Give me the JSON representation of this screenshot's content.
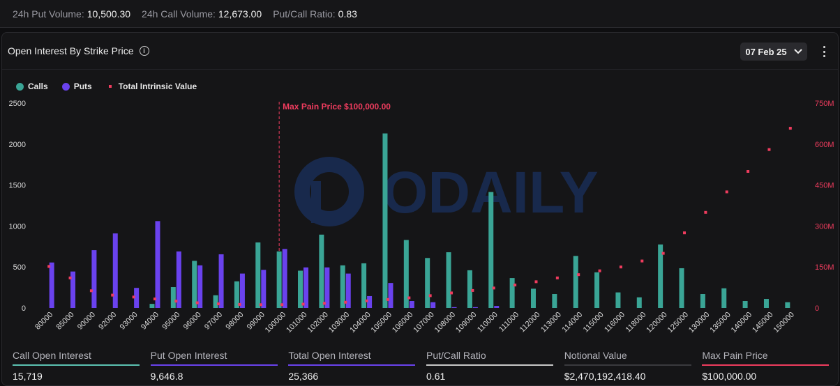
{
  "topbar": {
    "put_volume_label": "24h Put Volume:",
    "put_volume_value": "10,500.30",
    "call_volume_label": "24h Call Volume:",
    "call_volume_value": "12,673.00",
    "ratio_label": "Put/Call Ratio:",
    "ratio_value": "0.83"
  },
  "card": {
    "title": "Open Interest By Strike Price",
    "date_selector": "07 Feb 25",
    "icons": {
      "info": "info-icon",
      "chevron": "chevron-down-icon",
      "menu": "kebab-menu-icon"
    }
  },
  "colors": {
    "calls": "#3aa596",
    "puts": "#6a42ee",
    "intrinsic": "#ef3c5e",
    "max_pain": "#ef3c5e",
    "call_oi_line": "#5cc2b2",
    "put_oi_line": "#6a42ee",
    "total_oi_line": "#6a42ee",
    "ratio_line": "#c8c8c8",
    "notional_line": "#3a3a3e",
    "maxpain_line": "#ef3c5e"
  },
  "chart_data": {
    "type": "bar",
    "legend": [
      {
        "name": "Calls",
        "marker": "circle"
      },
      {
        "name": "Puts",
        "marker": "circle"
      },
      {
        "name": "Total Intrinsic Value",
        "marker": "square"
      }
    ],
    "categories": [
      "80000",
      "85000",
      "90000",
      "92000",
      "93000",
      "94000",
      "95000",
      "96000",
      "97000",
      "98000",
      "99000",
      "100000",
      "101000",
      "102000",
      "103000",
      "104000",
      "105000",
      "106000",
      "107000",
      "108000",
      "109000",
      "110000",
      "111000",
      "112000",
      "113000",
      "114000",
      "115000",
      "116000",
      "118000",
      "120000",
      "125000",
      "130000",
      "135000",
      "140000",
      "145000",
      "150000"
    ],
    "series": [
      {
        "name": "Calls",
        "axis": "left",
        "values": [
          0,
          0,
          0,
          0,
          0,
          50,
          255,
          575,
          155,
          325,
          800,
          690,
          455,
          895,
          520,
          545,
          2130,
          830,
          610,
          680,
          460,
          1415,
          365,
          235,
          170,
          635,
          435,
          190,
          130,
          775,
          485,
          170,
          240,
          85,
          110,
          70
        ]
      },
      {
        "name": "Puts",
        "axis": "left",
        "values": [
          555,
          445,
          705,
          910,
          245,
          1060,
          690,
          520,
          655,
          420,
          465,
          720,
          495,
          495,
          420,
          145,
          305,
          85,
          70,
          10,
          10,
          25,
          0,
          0,
          0,
          0,
          0,
          0,
          0,
          0,
          0,
          0,
          0,
          0,
          0,
          0
        ]
      },
      {
        "name": "Total Intrinsic Value",
        "axis": "right",
        "unit": "M",
        "values": [
          152,
          110,
          63,
          47,
          40,
          33,
          25,
          19,
          15,
          13,
          12,
          12,
          14,
          17,
          21,
          26,
          31,
          37,
          45,
          55,
          64,
          73,
          84,
          96,
          110,
          122,
          136,
          150,
          172,
          200,
          275,
          350,
          425,
          500,
          580,
          658
        ]
      }
    ],
    "y_left": {
      "min": 0,
      "max": 2500,
      "ticks": [
        "0",
        "500",
        "1000",
        "1500",
        "2000",
        "2500"
      ]
    },
    "y_right": {
      "min": 0,
      "max": 750,
      "ticks": [
        "0",
        "150M",
        "300M",
        "450M",
        "600M",
        "750M"
      ]
    },
    "annotation": {
      "text": "Max Pain Price $100,000.00",
      "x_category": "100000"
    },
    "grid": false,
    "watermark": "ODAILY"
  },
  "stats": [
    {
      "label": "Call Open Interest",
      "value": "15,719"
    },
    {
      "label": "Put Open Interest",
      "value": "9,646.8"
    },
    {
      "label": "Total Open Interest",
      "value": "25,366"
    },
    {
      "label": "Put/Call Ratio",
      "value": "0.61"
    },
    {
      "label": "Notional Value",
      "value": "$2,470,192,418.40"
    },
    {
      "label": "Max Pain Price",
      "value": "$100,000.00"
    }
  ]
}
